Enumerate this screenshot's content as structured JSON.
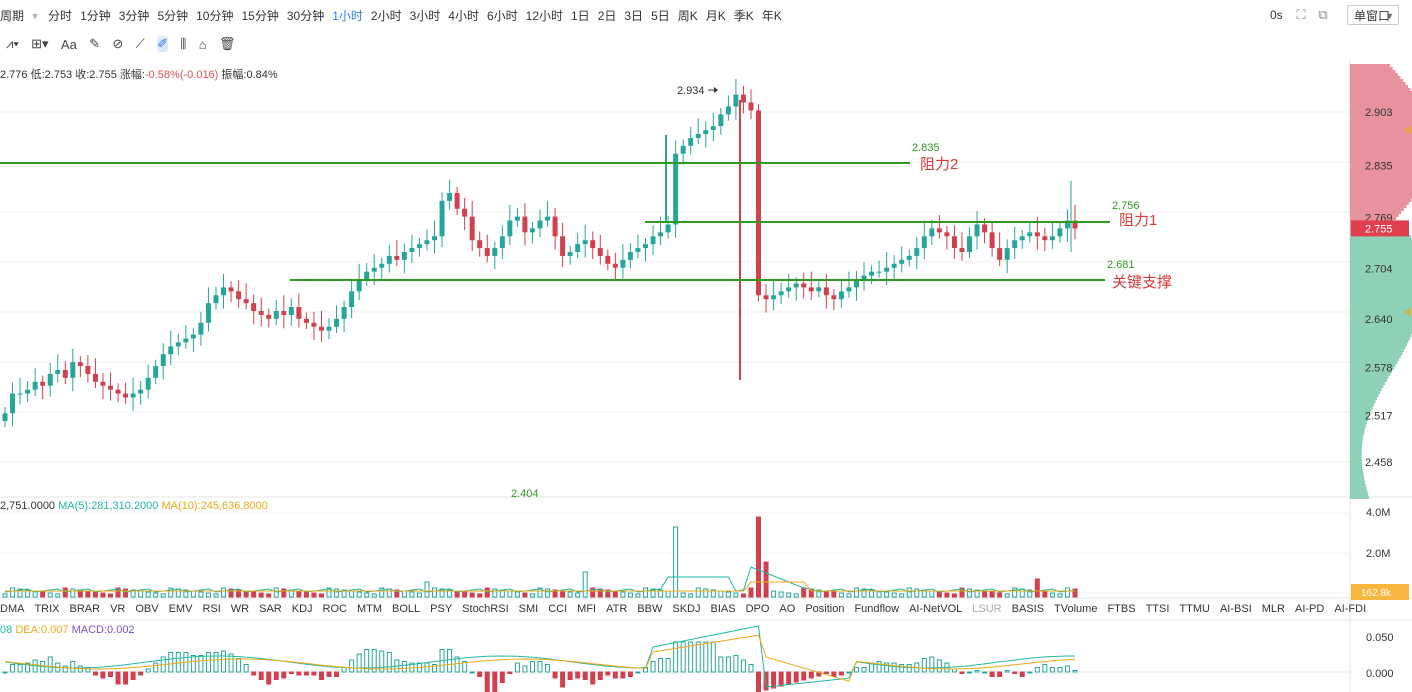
{
  "toolbar": {
    "period_label": "周期",
    "periods": [
      "分时",
      "1分钟",
      "3分钟",
      "5分钟",
      "10分钟",
      "15分钟",
      "30分钟",
      "1小时",
      "2小时",
      "3小时",
      "4小时",
      "6小时",
      "12小时",
      "1日",
      "2日",
      "3日",
      "5日",
      "周K",
      "月K",
      "季K",
      "年K"
    ],
    "active_period": "1小时",
    "countdown": "0s",
    "window_mode": "单窗口"
  },
  "drawing_tools": [
    "trend-lines-icon",
    "crosshair-icon",
    "text-icon",
    "brush-icon",
    "magnet-icon",
    "ruler-icon",
    "pen-icon",
    "pattern-icon",
    "lock-icon",
    "trash-icon"
  ],
  "ohlc_info": {
    "high": "2.776",
    "low_label": "低:2.753",
    "close_label": "收:2.755",
    "change_label": "涨幅:",
    "change_value": "-0.58%(-0.016)",
    "amplitude": "振幅:0.84%"
  },
  "volume_info": {
    "vol": "2,751.0000",
    "ma5": "MA(5):281,310.2000",
    "ma10": "MA(10):245,636.8000"
  },
  "macd_info": {
    "dif": "08",
    "dea": "DEA:0.007",
    "macd": "MACD:0.002"
  },
  "indicator_tabs": [
    "DMA",
    "TRIX",
    "BRAR",
    "VR",
    "OBV",
    "EMV",
    "RSI",
    "WR",
    "SAR",
    "KDJ",
    "ROC",
    "MTM",
    "BOLL",
    "PSY",
    "StochRSI",
    "SMI",
    "CCI",
    "MFI",
    "ATR",
    "BBW",
    "SKDJ",
    "BIAS",
    "DPO",
    "AO",
    "Position",
    "Fundflow",
    "AI-NetVOL",
    "LSUR",
    "BASIS",
    "TVolume",
    "FTBS",
    "TTSI",
    "TTMU",
    "AI-BSI",
    "MLR",
    "AI-PD",
    "AI-FDI"
  ],
  "disabled_tab": "LSUR",
  "colors": {
    "up": "#26a69a",
    "down": "#d0404e",
    "level_line": "#2f9a1f",
    "level_text_red": "#d83a3a",
    "ma5": "#23b8a4",
    "ma10": "#f0a818",
    "current_price_bg": "#e0404e"
  },
  "chart_data": {
    "type": "candlestick",
    "price_axis_ticks": [
      "2.903",
      "2.835",
      "2.769",
      "2.704",
      "2.640",
      "2.578",
      "2.517",
      "2.458"
    ],
    "current_price": "2.755",
    "volume_axis_ticks": [
      "4.0M",
      "2.0M"
    ],
    "current_volume": "162.8k",
    "macd_axis_ticks": [
      "0.050",
      "0.000"
    ],
    "annotations": {
      "high_marker": "2.934",
      "low_marker": "2.404",
      "resistance2_value": "2.835",
      "resistance2_label": "阻力2",
      "resistance1_value": "2.756",
      "resistance1_label": "阻力1",
      "support_value": "2.681",
      "support_label": "关键支撑"
    },
    "levels": [
      {
        "name": "resistance2",
        "price": 2.835
      },
      {
        "name": "resistance1",
        "price": 2.756
      },
      {
        "name": "support",
        "price": 2.681
      }
    ],
    "closes": [
      2.52,
      2.545,
      2.545,
      2.55,
      2.56,
      2.555,
      2.57,
      2.575,
      2.565,
      2.585,
      2.58,
      2.57,
      2.56,
      2.555,
      2.55,
      2.545,
      2.54,
      2.545,
      2.55,
      2.565,
      2.58,
      2.595,
      2.605,
      2.61,
      2.615,
      2.62,
      2.635,
      2.66,
      2.67,
      2.68,
      2.675,
      2.665,
      2.66,
      2.65,
      2.645,
      2.64,
      2.65,
      2.645,
      2.655,
      2.64,
      2.635,
      2.63,
      2.625,
      2.63,
      2.64,
      2.655,
      2.675,
      2.69,
      2.7,
      2.705,
      2.71,
      2.72,
      2.715,
      2.725,
      2.73,
      2.735,
      2.74,
      2.745,
      2.79,
      2.8,
      2.78,
      2.77,
      2.74,
      2.73,
      2.72,
      2.73,
      2.745,
      2.765,
      2.77,
      2.75,
      2.755,
      2.765,
      2.77,
      2.745,
      2.72,
      2.725,
      2.735,
      2.74,
      2.73,
      2.72,
      2.71,
      2.705,
      2.715,
      2.725,
      2.73,
      2.735,
      2.745,
      2.75,
      2.76,
      2.85,
      2.86,
      2.87,
      2.875,
      2.88,
      2.885,
      2.9,
      2.91,
      2.925,
      2.915,
      2.905,
      2.67,
      2.665,
      2.67,
      2.675,
      2.68,
      2.685,
      2.68,
      2.675,
      2.68,
      2.67,
      2.665,
      2.675,
      2.68,
      2.69,
      2.695,
      2.7,
      2.7,
      2.705,
      2.71,
      2.715,
      2.72,
      2.73,
      2.745,
      2.755,
      2.75,
      2.745,
      2.73,
      2.725,
      2.745,
      2.76,
      2.75,
      2.73,
      2.715,
      2.73,
      2.74,
      2.745,
      2.75,
      2.745,
      2.74,
      2.745,
      2.755,
      2.765,
      2.755
    ]
  }
}
